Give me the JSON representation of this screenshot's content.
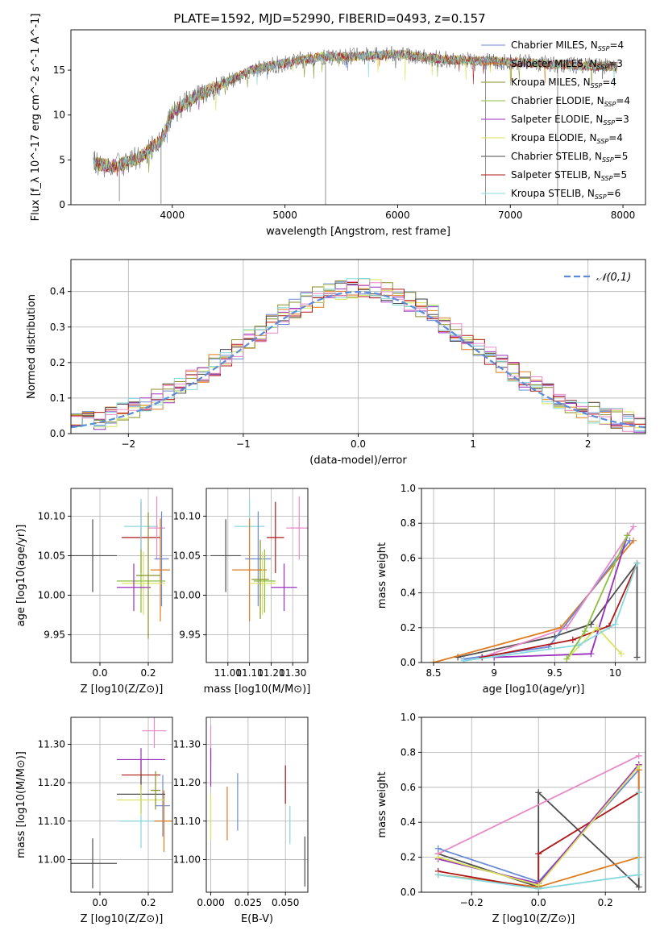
{
  "figure_title": "PLATE=1592, MJD=52990, FIBERID=0493, z=0.157",
  "colors": {
    "C1": "#6a89d6",
    "C2": "#e07b1f",
    "C3": "#8a8f2a",
    "C4": "#9b2fbf",
    "C5": "#d7e35a",
    "C6": "#4d4d4d",
    "C7": "#b01818",
    "C8": "#86d8dc",
    "C9": "#e88ac8",
    "C10": "#8dbf3f",
    "gauss": "#5b8bd9"
  },
  "chart_data": [
    {
      "id": "spectrum",
      "type": "line",
      "xlabel": "wavelength [Angstrom, rest frame]",
      "ylabel": "Flux [f_λ 10^-17 erg cm^-2 s^-1 A^-1]",
      "xlim": [
        3100,
        8200
      ],
      "ylim": [
        0,
        19.5
      ],
      "xticks": [
        4000,
        5000,
        6000,
        7000,
        8000
      ],
      "yticks": [
        0,
        5,
        10,
        15
      ],
      "grid": false,
      "legend_position": "upper-right",
      "legend": [
        {
          "label": "Chabrier MILES, N_SSP=4",
          "color": "C1"
        },
        {
          "label": "Salpeter MILES, N_SSP=3",
          "color": "C2"
        },
        {
          "label": "Kroupa MILES, N_SSP=4",
          "color": "C3"
        },
        {
          "label": "Chabrier ELODIE, N_SSP=4",
          "color": "C10"
        },
        {
          "label": "Salpeter ELODIE, N_SSP=3",
          "color": "C4"
        },
        {
          "label": "Kroupa ELODIE, N_SSP=4",
          "color": "C5"
        },
        {
          "label": "Chabrier STELIB, N_SSP=5",
          "color": "C6"
        },
        {
          "label": "Salpeter STELIB, N_SSP=5",
          "color": "C7"
        },
        {
          "label": "Kroupa STELIB, N_SSP=6",
          "color": "C8"
        }
      ],
      "continuum_x": [
        3300,
        3500,
        3700,
        3900,
        4000,
        4200,
        4400,
        4700,
        5000,
        5300,
        5600,
        6000,
        6400,
        6800,
        7200,
        7600,
        8000
      ],
      "continuum_y": [
        4.6,
        4.3,
        5.2,
        7.2,
        10.3,
        12.0,
        13.2,
        15.0,
        15.8,
        16.5,
        16.5,
        16.8,
        16.2,
        16.0,
        15.8,
        15.5,
        15.4
      ],
      "spikes": [
        {
          "x": 3530,
          "y": 0.4
        },
        {
          "x": 3900,
          "y": 0.1
        },
        {
          "x": 5360,
          "y": 0.0
        },
        {
          "x": 6780,
          "y": 0.0
        },
        {
          "x": 7420,
          "y": 0.0
        }
      ]
    },
    {
      "id": "residual_hist",
      "type": "bar",
      "xlabel": "(data-model)/error",
      "ylabel": "Normed distribution",
      "xlim": [
        -2.5,
        2.5
      ],
      "ylim": [
        0,
        0.49
      ],
      "xticks": [
        -2,
        -1,
        0,
        1,
        2
      ],
      "yticks": [
        0.0,
        0.1,
        0.2,
        0.3,
        0.4
      ],
      "grid": true,
      "legend_position": "upper-right",
      "legend": [
        {
          "label": "𝒩(0,1)",
          "color": "gauss",
          "style": "dashed"
        }
      ],
      "bin_width": 0.1,
      "bin_start": -2.5,
      "base_density_note": "step histograms of 9 fits; dashed normal curve N(0,1)"
    },
    {
      "id": "age_vs_Z",
      "type": "scatter",
      "xlabel": "Z [log10(Z/Z⊙)]",
      "ylabel": "age [log10(age/yr)]",
      "xlim": [
        -0.12,
        0.3
      ],
      "ylim": [
        9.915,
        10.135
      ],
      "xticks": [
        0.0,
        0.2
      ],
      "yticks": [
        9.95,
        10.0,
        10.05,
        10.1
      ],
      "grid": true,
      "points": [
        {
          "x": -0.03,
          "xerr": 0.1,
          "y": 10.05,
          "yerr": 0.046,
          "color": "C6"
        },
        {
          "x": 0.17,
          "xerr": 0.08,
          "y": 10.073,
          "yerr": 0.045,
          "color": "C7"
        },
        {
          "x": 0.17,
          "xerr": 0.07,
          "y": 10.087,
          "yerr": 0.035,
          "color": "C8"
        },
        {
          "x": 0.235,
          "xerr": 0.035,
          "y": 10.085,
          "yerr": 0.04,
          "color": "C9"
        },
        {
          "x": 0.255,
          "xerr": 0.03,
          "y": 10.046,
          "yerr": 0.06,
          "color": "C1"
        },
        {
          "x": 0.25,
          "xerr": 0.04,
          "y": 10.032,
          "yerr": 0.065,
          "color": "C2"
        },
        {
          "x": 0.17,
          "xerr": 0.1,
          "y": 10.018,
          "yerr": 0.04,
          "color": "C10"
        },
        {
          "x": 0.18,
          "xerr": 0.09,
          "y": 10.015,
          "yerr": 0.04,
          "color": "C5"
        },
        {
          "x": 0.14,
          "xerr": 0.07,
          "y": 10.01,
          "yerr": 0.03,
          "color": "C4"
        },
        {
          "x": 0.2,
          "xerr": 0.05,
          "y": 10.025,
          "yerr": 0.08,
          "color": "C3"
        }
      ]
    },
    {
      "id": "age_vs_mass",
      "type": "scatter",
      "xlabel": "mass [log10(M/M⊙)]",
      "ylabel": "",
      "xlim": [
        10.9,
        11.37
      ],
      "ylim": [
        9.915,
        10.135
      ],
      "xticks": [
        11.0,
        11.1,
        11.2,
        11.3
      ],
      "yticks": [
        9.95,
        10.0,
        10.05,
        10.1
      ],
      "grid": true,
      "points": [
        {
          "x": 10.99,
          "xerr": 0.07,
          "y": 10.05,
          "yerr": 0.046,
          "color": "C6"
        },
        {
          "x": 11.22,
          "xerr": 0.04,
          "y": 10.073,
          "yerr": 0.045,
          "color": "C7"
        },
        {
          "x": 11.1,
          "xerr": 0.07,
          "y": 10.087,
          "yerr": 0.035,
          "color": "C8"
        },
        {
          "x": 11.33,
          "xerr": 0.06,
          "y": 10.085,
          "yerr": 0.04,
          "color": "C9"
        },
        {
          "x": 11.14,
          "xerr": 0.06,
          "y": 10.046,
          "yerr": 0.06,
          "color": "C1"
        },
        {
          "x": 11.1,
          "xerr": 0.08,
          "y": 10.032,
          "yerr": 0.065,
          "color": "C2"
        },
        {
          "x": 11.17,
          "xerr": 0.05,
          "y": 10.018,
          "yerr": 0.04,
          "color": "C10"
        },
        {
          "x": 11.16,
          "xerr": 0.06,
          "y": 10.015,
          "yerr": 0.04,
          "color": "C5"
        },
        {
          "x": 11.26,
          "xerr": 0.06,
          "y": 10.01,
          "yerr": 0.03,
          "color": "C4"
        },
        {
          "x": 11.15,
          "xerr": 0.04,
          "y": 10.02,
          "yerr": 0.05,
          "color": "C3"
        }
      ]
    },
    {
      "id": "weight_vs_age",
      "type": "line",
      "xlabel": "age  [log10(age/yr)]",
      "ylabel": "mass weight",
      "xlim": [
        8.4,
        10.25
      ],
      "ylim": [
        0,
        1.0
      ],
      "xticks": [
        8.5,
        9.0,
        9.5,
        10.0
      ],
      "yticks": [
        0.0,
        0.2,
        0.4,
        0.6,
        0.8,
        1.0
      ],
      "grid": true,
      "series": [
        {
          "color": "C6",
          "x": [
            8.7,
            9.5,
            9.8,
            10.18,
            10.18
          ],
          "y": [
            0.03,
            0.15,
            0.22,
            0.57,
            0.03
          ]
        },
        {
          "color": "C2",
          "x": [
            8.5,
            9.55,
            10.15
          ],
          "y": [
            0.0,
            0.2,
            0.7
          ]
        },
        {
          "color": "C1",
          "x": [
            8.75,
            9.45,
            10.12
          ],
          "y": [
            0.02,
            0.09,
            0.7
          ]
        },
        {
          "color": "C9",
          "x": [
            8.9,
            9.6,
            10.15
          ],
          "y": [
            0.03,
            0.2,
            0.78
          ]
        },
        {
          "color": "C7",
          "x": [
            8.9,
            9.65,
            9.95,
            10.18
          ],
          "y": [
            0.03,
            0.13,
            0.21,
            0.57
          ]
        },
        {
          "color": "C4",
          "x": [
            9.0,
            9.8,
            10.1
          ],
          "y": [
            0.03,
            0.05,
            0.73
          ]
        },
        {
          "color": "C5",
          "x": [
            9.6,
            9.85,
            10.05
          ],
          "y": [
            0.02,
            0.2,
            0.05
          ]
        },
        {
          "color": "C8",
          "x": [
            8.75,
            9.7,
            10.0,
            10.18
          ],
          "y": [
            0.01,
            0.1,
            0.22,
            0.57
          ]
        },
        {
          "color": "C10",
          "x": [
            9.6,
            9.75,
            10.1
          ],
          "y": [
            0.02,
            0.18,
            0.73
          ]
        }
      ]
    },
    {
      "id": "mass_vs_Z",
      "type": "scatter",
      "xlabel": "Z [log10(Z/Z⊙)]",
      "ylabel": "mass [log10(M/M⊙)]",
      "xlim": [
        -0.12,
        0.3
      ],
      "ylim": [
        10.915,
        11.37
      ],
      "xticks": [
        0.0,
        0.2
      ],
      "yticks": [
        11.0,
        11.1,
        11.2,
        11.3
      ],
      "grid": true,
      "points": [
        {
          "x": -0.03,
          "xerr": 0.1,
          "y": 10.99,
          "yerr": 0.065,
          "color": "C6"
        },
        {
          "x": 0.17,
          "xerr": 0.08,
          "y": 11.22,
          "yerr": 0.04,
          "color": "C7"
        },
        {
          "x": 0.17,
          "xerr": 0.09,
          "y": 11.1,
          "yerr": 0.07,
          "color": "C8"
        },
        {
          "x": 0.225,
          "xerr": 0.05,
          "y": 11.335,
          "yerr": 0.045,
          "color": "C9"
        },
        {
          "x": 0.26,
          "xerr": 0.03,
          "y": 11.14,
          "yerr": 0.08,
          "color": "C1"
        },
        {
          "x": 0.265,
          "xerr": 0.04,
          "y": 11.1,
          "yerr": 0.08,
          "color": "C2"
        },
        {
          "x": 0.17,
          "xerr": 0.1,
          "y": 11.17,
          "yerr": 0.05,
          "color": "C6"
        },
        {
          "x": 0.17,
          "xerr": 0.1,
          "y": 11.155,
          "yerr": 0.04,
          "color": "C5"
        },
        {
          "x": 0.17,
          "xerr": 0.1,
          "y": 11.26,
          "yerr": 0.03,
          "color": "C4"
        },
        {
          "x": 0.23,
          "xerr": 0.02,
          "y": 11.18,
          "yerr": 0.05,
          "color": "C3"
        }
      ]
    },
    {
      "id": "mass_vs_EBV",
      "type": "scatter",
      "xlabel": "E(B-V)",
      "ylabel": "",
      "xlim": [
        -0.003,
        0.065
      ],
      "ylim": [
        10.915,
        11.37
      ],
      "xticks": [
        0.0,
        0.025,
        0.05
      ],
      "yticks": [
        11.0,
        11.1,
        11.2,
        11.3
      ],
      "grid": true,
      "points": [
        {
          "x": 0.0,
          "xerr": 0.0,
          "y": 11.3,
          "yerr": 0.05,
          "color": "C9"
        },
        {
          "x": 0.0,
          "xerr": 0.0,
          "y": 11.24,
          "yerr": 0.05,
          "color": "C4"
        },
        {
          "x": 0.0,
          "xerr": 0.0,
          "y": 11.11,
          "yerr": 0.06,
          "color": "C5"
        },
        {
          "x": 0.011,
          "xerr": 0.0,
          "y": 11.12,
          "yerr": 0.07,
          "color": "C2"
        },
        {
          "x": 0.018,
          "xerr": 0.0,
          "y": 11.15,
          "yerr": 0.075,
          "color": "C1"
        },
        {
          "x": 0.05,
          "xerr": 0.0,
          "y": 11.195,
          "yerr": 0.05,
          "color": "C7"
        },
        {
          "x": 0.053,
          "xerr": 0.0,
          "y": 11.09,
          "yerr": 0.05,
          "color": "C8"
        },
        {
          "x": 0.063,
          "xerr": 0.0,
          "y": 10.995,
          "yerr": 0.065,
          "color": "C6"
        }
      ]
    },
    {
      "id": "weight_vs_Z",
      "type": "line",
      "xlabel": "Z [log10(Z/Z⊙)]",
      "ylabel": "mass weight",
      "xlim": [
        -0.35,
        0.32
      ],
      "ylim": [
        0,
        1.0
      ],
      "xticks": [
        -0.2,
        0.0,
        0.2
      ],
      "yticks": [
        0.0,
        0.2,
        0.4,
        0.6,
        0.8,
        1.0
      ],
      "grid": true,
      "series": [
        {
          "color": "C6",
          "x": [
            -0.3,
            0.0,
            0.0,
            0.3,
            0.3
          ],
          "y": [
            0.22,
            0.03,
            0.57,
            0.03,
            0.73
          ]
        },
        {
          "color": "C9",
          "x": [
            -0.3,
            0.3
          ],
          "y": [
            0.22,
            0.78
          ]
        },
        {
          "color": "C1",
          "x": [
            -0.3,
            0.0,
            0.3
          ],
          "y": [
            0.25,
            0.06,
            0.7
          ]
        },
        {
          "color": "C2",
          "x": [
            -0.3,
            0.0,
            0.3,
            0.3
          ],
          "y": [
            0.1,
            0.03,
            0.2,
            0.7
          ]
        },
        {
          "color": "C7",
          "x": [
            -0.3,
            0.0,
            0.0,
            0.3
          ],
          "y": [
            0.12,
            0.02,
            0.22,
            0.57
          ]
        },
        {
          "color": "C4",
          "x": [
            -0.3,
            0.0,
            0.3
          ],
          "y": [
            0.19,
            0.05,
            0.73
          ]
        },
        {
          "color": "C5",
          "x": [
            -0.3,
            0.0,
            0.3
          ],
          "y": [
            0.2,
            0.04,
            0.72
          ]
        },
        {
          "color": "C8",
          "x": [
            -0.3,
            0.0,
            0.3,
            0.3
          ],
          "y": [
            0.1,
            0.02,
            0.1,
            0.57
          ]
        }
      ]
    }
  ]
}
